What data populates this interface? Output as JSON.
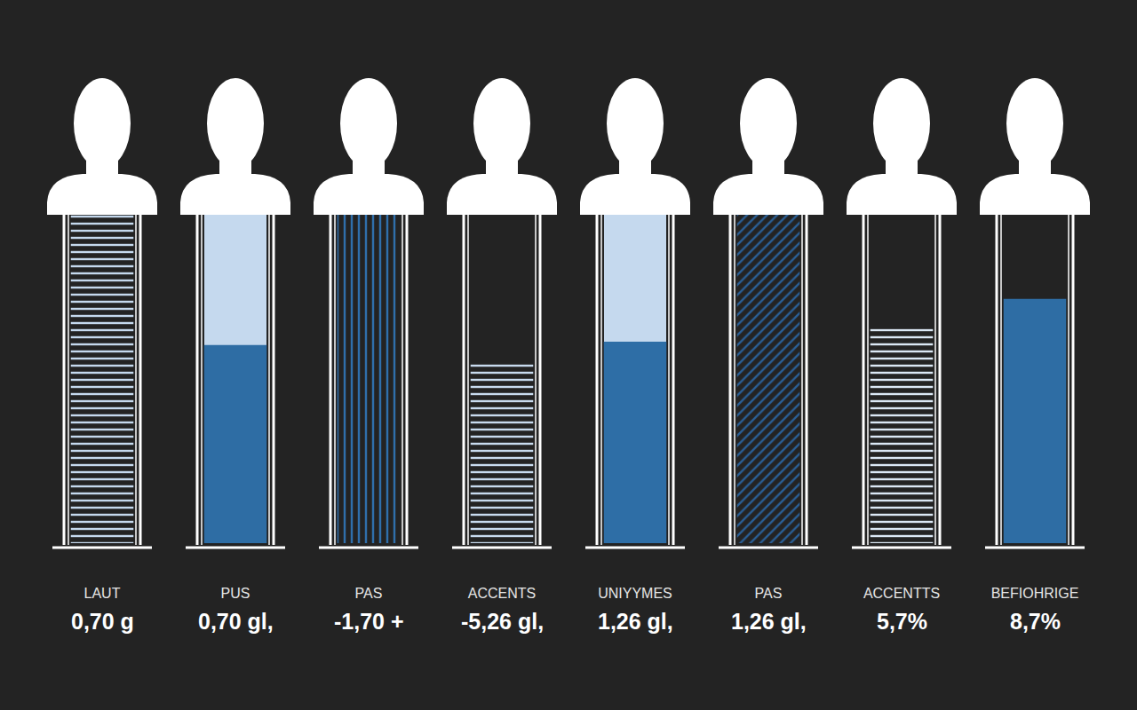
{
  "chart_data": {
    "type": "bar",
    "categories": [
      "LAUT",
      "PUS",
      "PAS",
      "ACCENTS",
      "UNIYYMES",
      "PAS",
      "ACCENTTS",
      "BEFIOHRIGE"
    ],
    "values": [
      100,
      60,
      100,
      55,
      61,
      100,
      65,
      74
    ],
    "colors": [
      "#c5d9ee",
      "#2e6da4",
      "#2f6fab",
      "#c8dbef",
      "#2e6ea6",
      "#2a5f96",
      "#dbe8f5",
      "#2e6da4"
    ],
    "annotations": [
      "0,70 g",
      "0,70 gl,",
      "-1,70 +",
      "-5,26 gl,",
      "1,26 gl,",
      "1,26 gl,",
      "5,7%",
      "8,7%"
    ],
    "ylim": [
      0,
      100
    ],
    "tick_labels": "x",
    "grid": false
  }
}
